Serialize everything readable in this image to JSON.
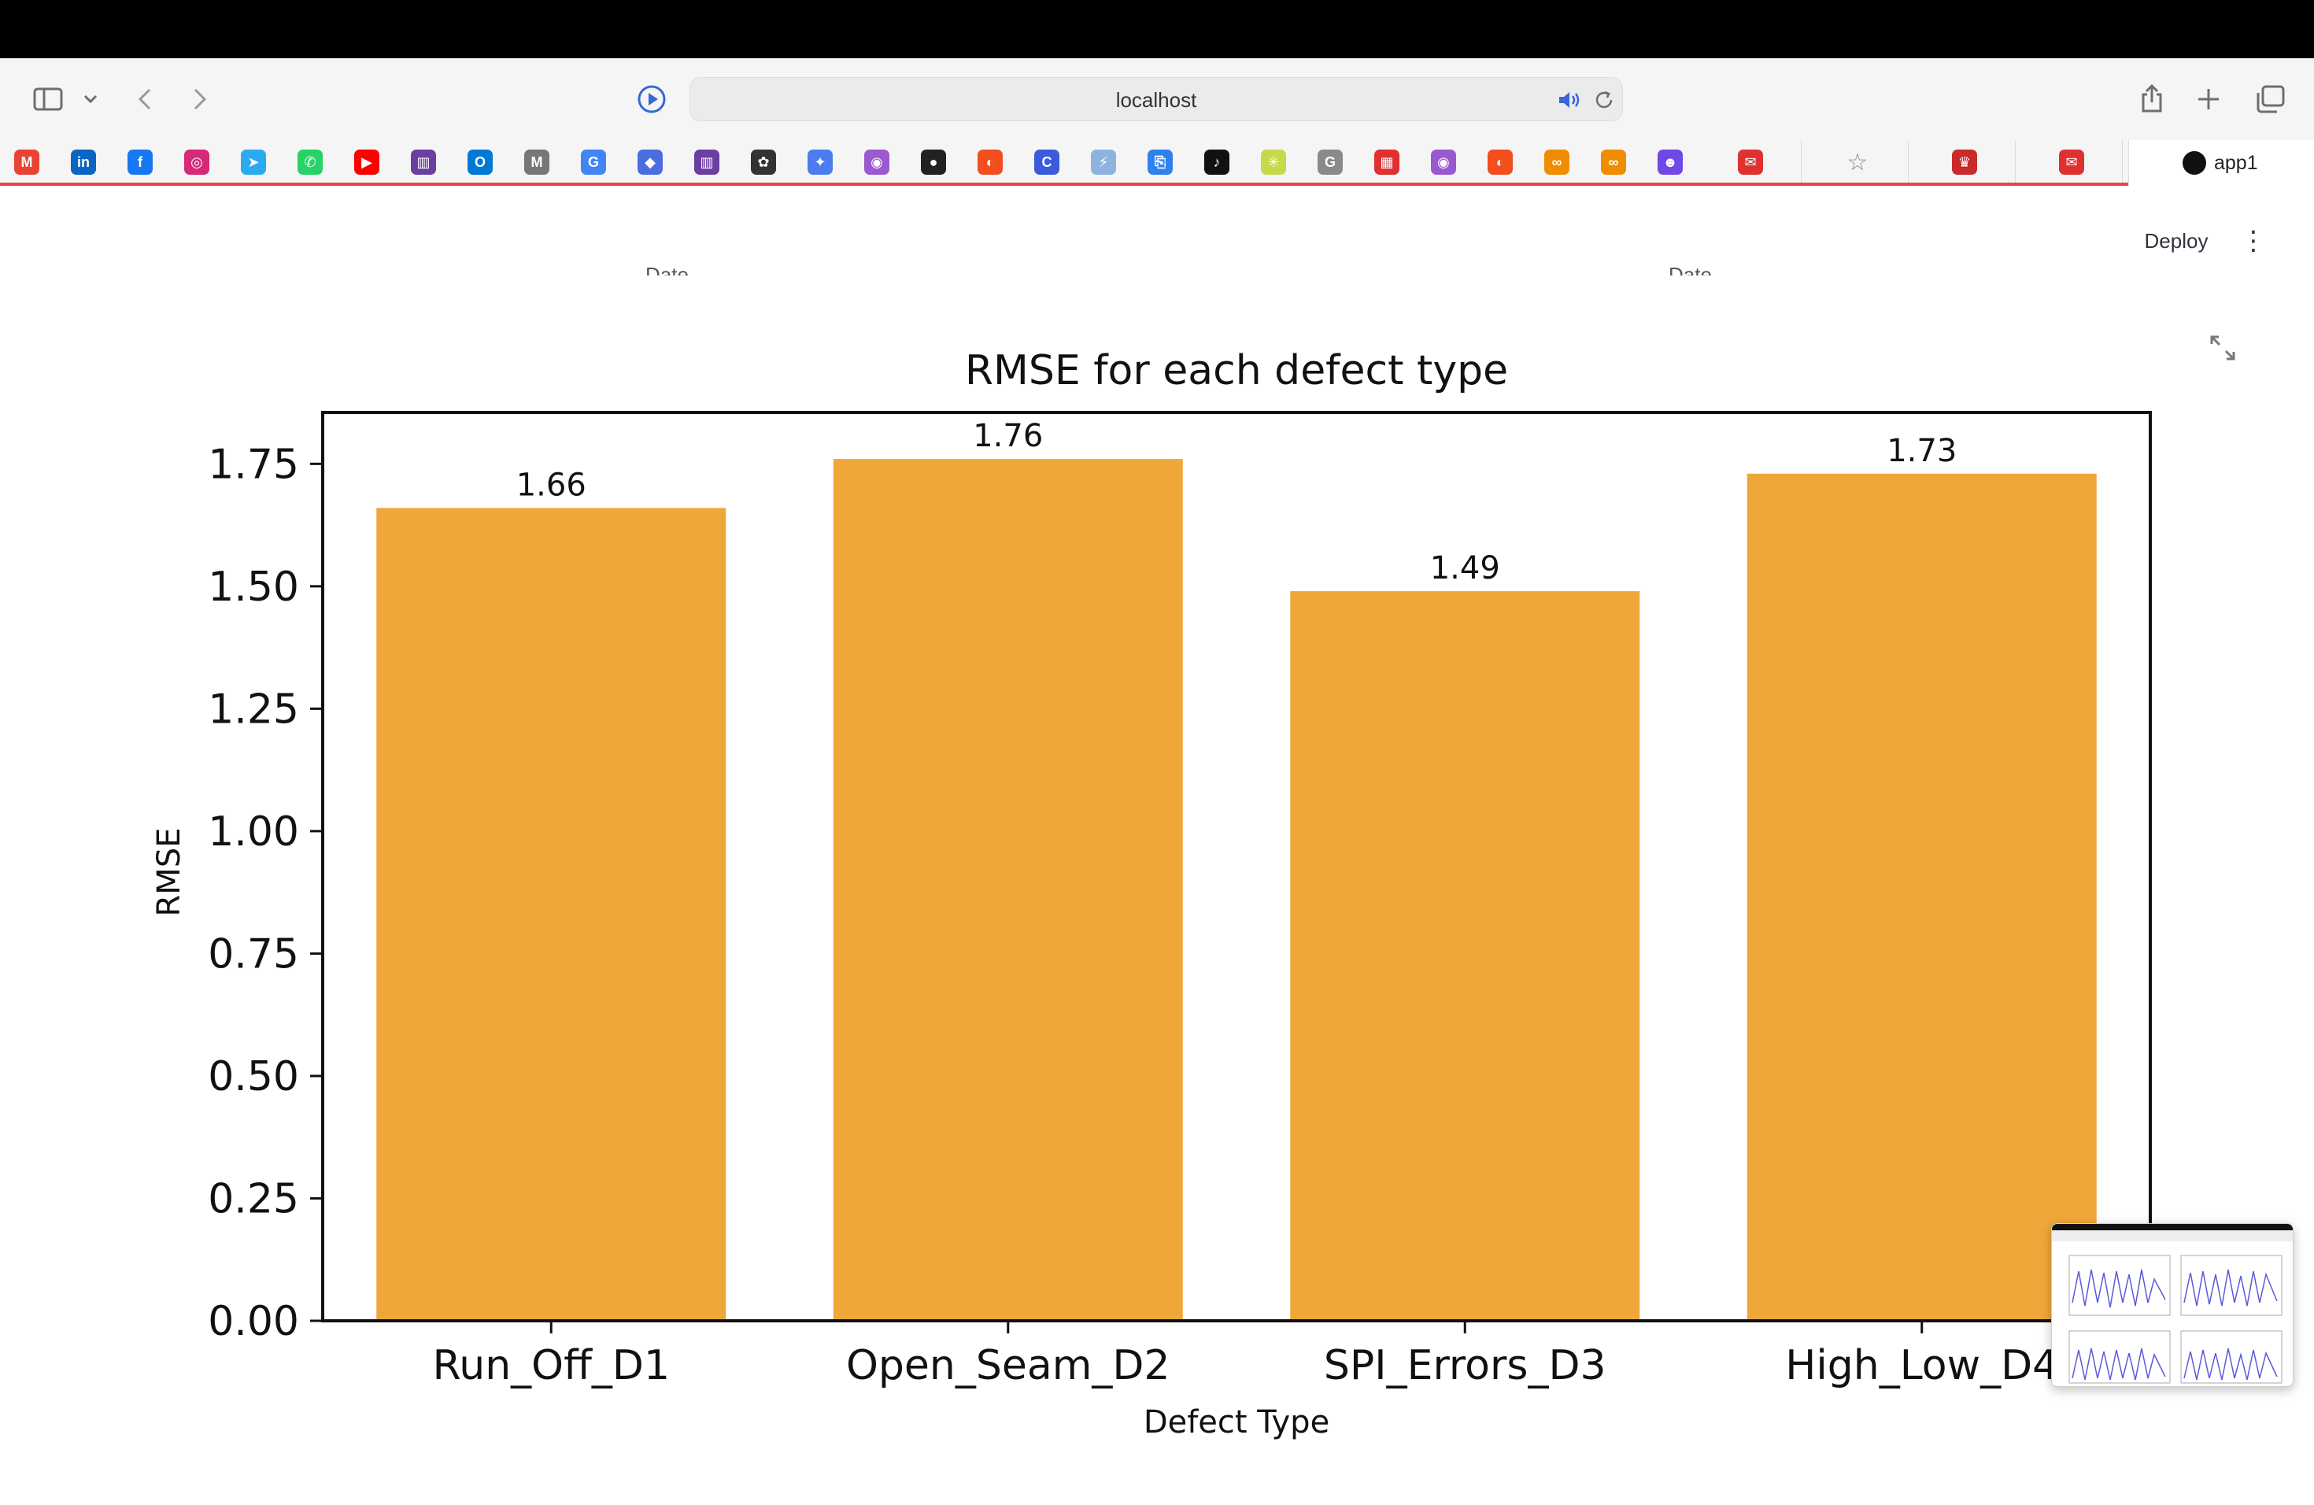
{
  "browser": {
    "address": "localhost",
    "active_tab_label": "app1",
    "favorites": [
      {
        "name": "gmail",
        "glyph": "M",
        "color": "#ea4335"
      },
      {
        "name": "linkedin",
        "glyph": "in",
        "color": "#0a66c2"
      },
      {
        "name": "facebook",
        "glyph": "f",
        "color": "#1877f2"
      },
      {
        "name": "instagram",
        "glyph": "◎",
        "color": "#d62976"
      },
      {
        "name": "telegram",
        "glyph": "➤",
        "color": "#2aabee"
      },
      {
        "name": "whatsapp",
        "glyph": "✆",
        "color": "#25d366"
      },
      {
        "name": "youtube",
        "glyph": "▶",
        "color": "#ff0000"
      },
      {
        "name": "site",
        "glyph": "▥",
        "color": "#6b3fa0"
      },
      {
        "name": "outlook",
        "glyph": "O",
        "color": "#0078d4"
      },
      {
        "name": "medium",
        "glyph": "M",
        "color": "#777777"
      },
      {
        "name": "google",
        "glyph": "G",
        "color": "#4285f4"
      },
      {
        "name": "site",
        "glyph": "◆",
        "color": "#4a6ee0"
      },
      {
        "name": "site",
        "glyph": "▥",
        "color": "#6b3fa0"
      },
      {
        "name": "chatgpt",
        "glyph": "✿",
        "color": "#333333"
      },
      {
        "name": "gemini",
        "glyph": "✦",
        "color": "#4c7df0"
      },
      {
        "name": "copilot",
        "glyph": "◉",
        "color": "#9b59d0"
      },
      {
        "name": "github",
        "glyph": "●",
        "color": "#222222"
      },
      {
        "name": "figma",
        "glyph": "◐",
        "color": "#f24e1e"
      },
      {
        "name": "site",
        "glyph": "C",
        "color": "#3b5bdb"
      },
      {
        "name": "site",
        "glyph": "⚡",
        "color": "#8fb3e0"
      },
      {
        "name": "site",
        "glyph": "⎘",
        "color": "#2f80ed"
      },
      {
        "name": "tiktok",
        "glyph": "♪",
        "color": "#111111"
      },
      {
        "name": "site",
        "glyph": "✳",
        "color": "#c5d94a"
      },
      {
        "name": "site",
        "glyph": "G",
        "color": "#8a8a8a"
      },
      {
        "name": "site",
        "glyph": "▦",
        "color": "#e03131"
      },
      {
        "name": "copilot",
        "glyph": "◉",
        "color": "#9b59d0"
      },
      {
        "name": "figma",
        "glyph": "◐",
        "color": "#f24e1e"
      },
      {
        "name": "site",
        "glyph": "∞",
        "color": "#f08c00"
      },
      {
        "name": "site",
        "glyph": "∞",
        "color": "#f08c00"
      },
      {
        "name": "site",
        "glyph": "☻",
        "color": "#7048e8"
      },
      {
        "name": "site",
        "glyph": "✉",
        "color": "#e03131"
      },
      {
        "name": "star",
        "glyph": "☆",
        "color": "#8a8a8a"
      },
      {
        "name": "site",
        "glyph": "♛",
        "color": "#c92a2a"
      },
      {
        "name": "site",
        "glyph": "✉",
        "color": "#e03131"
      }
    ]
  },
  "app": {
    "deploy_label": "Deploy",
    "menu_glyph": "⋮",
    "cut_labels": [
      "Date",
      "Date"
    ]
  },
  "chart_data": {
    "type": "bar",
    "title": "RMSE for each defect type",
    "xlabel": "Defect Type",
    "ylabel": "RMSE",
    "categories": [
      "Run_Off_D1",
      "Open_Seam_D2",
      "SPI_Errors_D3",
      "High_Low_D4"
    ],
    "values": [
      1.66,
      1.76,
      1.49,
      1.73
    ],
    "data_labels": [
      "1.66",
      "1.76",
      "1.49",
      "1.73"
    ],
    "ylim": [
      0,
      1.855
    ],
    "yticks": [
      0.0,
      0.25,
      0.5,
      0.75,
      1.0,
      1.25,
      1.5,
      1.75
    ],
    "ytick_labels": [
      "0.00",
      "0.25",
      "0.50",
      "0.75",
      "1.00",
      "1.25",
      "1.50",
      "1.75"
    ],
    "bar_color": "#f0a73a",
    "grid": false
  }
}
